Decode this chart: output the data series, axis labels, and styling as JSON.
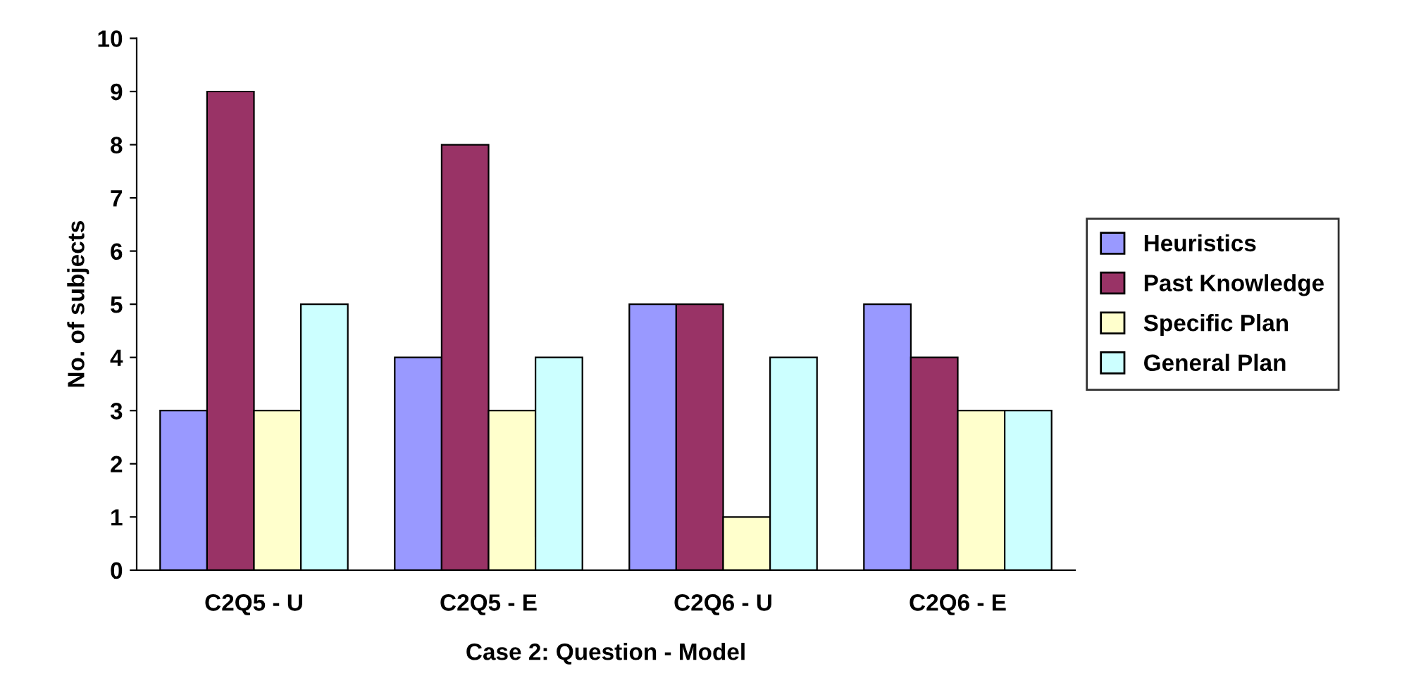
{
  "chart_data": {
    "type": "bar",
    "xlabel": "Case 2: Question - Model",
    "ylabel": "No. of subjects",
    "categories": [
      "C2Q5 - U",
      "C2Q5 - E",
      "C2Q6 - U",
      "C2Q6 - E"
    ],
    "series": [
      {
        "name": "Heuristics",
        "color": "#9999ff",
        "values": [
          3,
          4,
          5,
          5
        ]
      },
      {
        "name": "Past Knowledge",
        "color": "#993366",
        "values": [
          9,
          8,
          5,
          4
        ]
      },
      {
        "name": "Specific Plan",
        "color": "#ffffcc",
        "values": [
          3,
          3,
          1,
          3
        ]
      },
      {
        "name": "General Plan",
        "color": "#ccffff",
        "values": [
          5,
          4,
          4,
          3
        ]
      }
    ],
    "ylim": [
      0,
      10
    ],
    "yticks": [
      0,
      1,
      2,
      3,
      4,
      5,
      6,
      7,
      8,
      9,
      10
    ],
    "grid": false,
    "legend": "right"
  }
}
